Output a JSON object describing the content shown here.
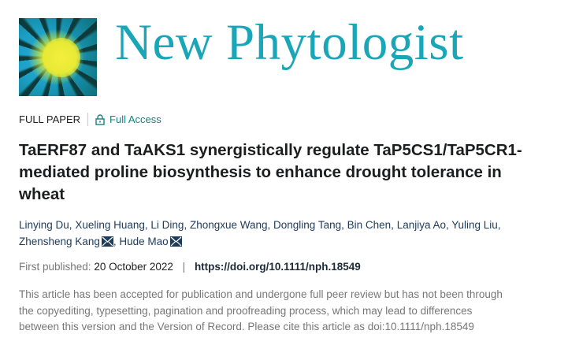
{
  "header": {
    "journal_name": "New Phytologist",
    "logo_icon": "journal-cover-logo"
  },
  "meta": {
    "paper_type": "FULL PAPER",
    "access": "Full Access",
    "access_icon": "lock-open-icon",
    "accent_color": "#1b7f7e"
  },
  "article": {
    "title_lines": [
      "TaERF87 and TaAKS1 synergistically regulate TaP5CS1/TaP5CR1-",
      "mediated proline biosynthesis to enhance drought tolerance in",
      "wheat"
    ],
    "authors": [
      "Linying Du",
      "Xueling Huang",
      "Li Ding",
      "Zhongxue Wang",
      "Dongling Tang",
      "Bin Chen",
      "Lanjiya Ao",
      "Yuling Liu",
      "Zhensheng Kang",
      "Hude Mao"
    ],
    "first_published_label": "First published:",
    "first_published_date": "20 October 2022",
    "separator": "|",
    "doi": "https://doi.org/10.1111/nph.18549",
    "notice_lines": [
      "This article has been accepted for publication and undergone full peer review but has not been through",
      "the copyediting, typesetting, pagination and proofreading process, which may lead to differences",
      "between this version and the Version of Record. Please cite this article as doi:10.1111/nph.18549"
    ]
  }
}
